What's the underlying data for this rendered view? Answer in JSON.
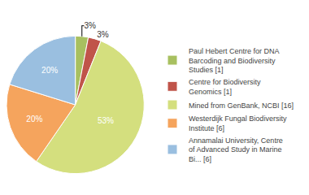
{
  "chart_data": {
    "type": "pie",
    "categories": [
      "Paul Hebert Centre for DNA\nBarcoding and Biodiversity\nStudies [1]",
      "Centre for Biodiversity\nGenomics [1]",
      "Mined from GenBank, NCBI [16]",
      "Westerdijk Fungal Biodiversity\nInstitute [6]",
      "Annamalai University, Centre\nof Advanced Study in Marine\nBi... [6]"
    ],
    "values": [
      3,
      3,
      53,
      20,
      20
    ],
    "value_labels": [
      "3%",
      "3%",
      "53%",
      "20%",
      "20%"
    ],
    "colors": [
      "#a8c060",
      "#c0544a",
      "#d4df7e",
      "#f5a45d",
      "#9abfe0"
    ],
    "data_labels": true,
    "legend": "right"
  }
}
